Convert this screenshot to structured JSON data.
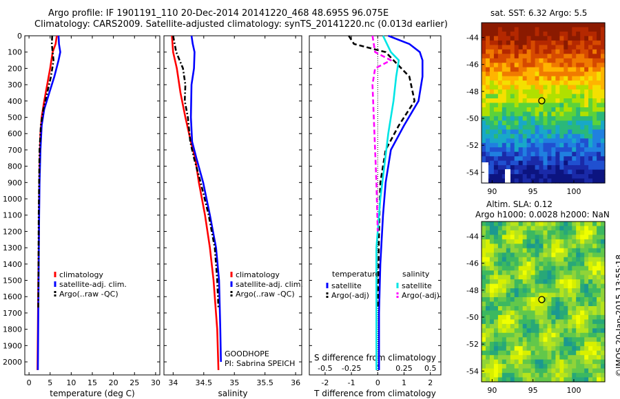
{
  "header": {
    "title_line1": "Argo profile: IF 1901191_110 20-Dec-2014 20141220_468 48.695S 96.075E",
    "title_line2": "Climatology: CARS2009. Satellite-adjusted climatology: synTS_20141220.nc (0.013d earlier)"
  },
  "maps": {
    "sst_title": "sat. SST: 6.32 Argo: 5.5",
    "sla_title_line1": "Altim. SLA: 0.12",
    "sla_title_line2": "Argo h1000: 0.0028 h2000: NaN",
    "watermark": "©IMOS 20-Jan-2015 13:55:18",
    "lat_ticks": [
      "-44",
      "-46",
      "-48",
      "-50",
      "-52",
      "-54"
    ],
    "lon_ticks": [
      "90",
      "95",
      "100"
    ],
    "float_position": {
      "lon": 96.075,
      "lat": -48.695
    }
  },
  "chart_data": [
    {
      "type": "line",
      "panel": "temperature",
      "xlabel": "temperature (deg C)",
      "xlim": [
        -1,
        31
      ],
      "xticks": [
        0,
        5,
        10,
        15,
        20,
        25,
        30
      ],
      "ylim": [
        0,
        2080
      ],
      "yticks": [
        0,
        100,
        200,
        300,
        400,
        500,
        600,
        700,
        800,
        900,
        1000,
        1100,
        1200,
        1300,
        1400,
        1500,
        1600,
        1700,
        1800,
        1900,
        2000
      ],
      "y_reversed": true,
      "legend": [
        "climatology",
        "satellite-adj. clim.",
        "Argo(..raw -QC)"
      ],
      "series": [
        {
          "name": "climatology",
          "color": "#ff0000",
          "style": "solid",
          "x": [
            6.6,
            6.3,
            5.6,
            5.0,
            4.3,
            3.6,
            3.0,
            2.7,
            2.5,
            2.4,
            2.35,
            2.2,
            2.1,
            2.0
          ],
          "y": [
            0,
            50,
            100,
            200,
            300,
            400,
            500,
            600,
            800,
            1000,
            1200,
            1500,
            1800,
            2050
          ]
        },
        {
          "name": "satellite-adj. clim.",
          "color": "#0000ff",
          "style": "solid",
          "x": [
            7.0,
            7.1,
            7.4,
            7.0,
            6.0,
            4.8,
            3.6,
            3.0,
            2.7,
            2.5,
            2.4,
            2.3,
            2.2,
            2.1
          ],
          "y": [
            0,
            50,
            100,
            150,
            250,
            350,
            450,
            550,
            700,
            900,
            1100,
            1400,
            1700,
            2050
          ]
        },
        {
          "name": "Argo(..raw -QC)",
          "color": "#000000",
          "style": "dashdot",
          "x": [
            5.5,
            5.4,
            5.6,
            5.8,
            5.2,
            4.3,
            3.4,
            2.8,
            2.5,
            2.4,
            2.3,
            2.25,
            2.2
          ],
          "y": [
            0,
            50,
            100,
            150,
            250,
            350,
            450,
            550,
            700,
            900,
            1100,
            1400,
            1670
          ]
        }
      ]
    },
    {
      "type": "line",
      "panel": "salinity",
      "xlabel": "salinity",
      "xlim": [
        33.85,
        36.1
      ],
      "xticks": [
        34,
        34.5,
        35,
        35.5,
        36
      ],
      "ylim": [
        0,
        2080
      ],
      "y_reversed": true,
      "legend": [
        "climatology",
        "satellite-adj. clim.",
        "Argo(..raw -QC)"
      ],
      "annotations": [
        "GOODHOPE",
        "PI: Sabrina SPEICH"
      ],
      "series": [
        {
          "name": "climatology",
          "color": "#ff0000",
          "style": "solid",
          "x": [
            33.98,
            34.0,
            34.06,
            34.12,
            34.2,
            34.29,
            34.36,
            34.42,
            34.52,
            34.6,
            34.66,
            34.72,
            34.74
          ],
          "y": [
            0,
            100,
            200,
            350,
            500,
            650,
            750,
            900,
            1100,
            1300,
            1500,
            1800,
            2050
          ]
        },
        {
          "name": "satellite-adj. clim.",
          "color": "#0000ff",
          "style": "solid",
          "x": [
            34.3,
            34.32,
            34.35,
            34.34,
            34.3,
            34.29,
            34.31,
            34.38,
            34.49,
            34.6,
            34.7,
            34.75,
            34.77,
            34.78
          ],
          "y": [
            0,
            50,
            100,
            200,
            300,
            500,
            650,
            750,
            900,
            1100,
            1300,
            1500,
            1800,
            2000
          ]
        },
        {
          "name": "Argo(..raw -QC)",
          "color": "#000000",
          "style": "dashdot",
          "x": [
            34.0,
            34.05,
            34.16,
            34.2,
            34.19,
            34.24,
            34.28,
            34.34,
            34.45,
            34.58,
            34.68,
            34.72,
            34.74
          ],
          "y": [
            0,
            100,
            200,
            300,
            400,
            500,
            650,
            750,
            900,
            1100,
            1300,
            1500,
            1670
          ]
        }
      ]
    },
    {
      "type": "line",
      "panel": "difference",
      "xlabel": "T difference from climatology",
      "xlabel_top": "S difference from climatology",
      "xlim": [
        -2.6,
        2.4
      ],
      "xticks": [
        -2,
        -1,
        0,
        1,
        2
      ],
      "xticks_S_labels": [
        "-0.5",
        "-0.25",
        "0",
        "0.25",
        "0.5"
      ],
      "xticks_S_positions": [
        -2,
        -1,
        0,
        1,
        2
      ],
      "ylim": [
        0,
        2080
      ],
      "y_reversed": true,
      "legend_groups": [
        "temperature",
        "salinity"
      ],
      "legend": [
        "satellite",
        "Argo(-adj)",
        "satellite",
        "Argo(-adj)"
      ],
      "series": [
        {
          "name": "temperature satellite",
          "color": "#0000ff",
          "style": "solid",
          "x": [
            0.4,
            1.2,
            1.6,
            1.7,
            1.7,
            1.55,
            1.0,
            0.5,
            0.3,
            0.2,
            0.1,
            0.05,
            0.05
          ],
          "y": [
            0,
            50,
            100,
            150,
            250,
            400,
            550,
            700,
            900,
            1100,
            1400,
            1700,
            2050
          ]
        },
        {
          "name": "temperature Argo(-adj)",
          "color": "#000000",
          "style": "dashed",
          "x": [
            -1.1,
            -0.9,
            0.3,
            0.6,
            1.2,
            1.4,
            0.8,
            0.3,
            0.1,
            0.05,
            0.02,
            0.0
          ],
          "y": [
            0,
            50,
            100,
            150,
            250,
            400,
            550,
            700,
            900,
            1200,
            1500,
            1670
          ]
        },
        {
          "name": "salinity satellite",
          "color": "#00e5e5",
          "style": "solid",
          "x": [
            0.2,
            0.5,
            0.8,
            0.7,
            0.6,
            0.4,
            0.25,
            0.1,
            -0.05,
            -0.05,
            -0.05,
            -0.05
          ],
          "y": [
            0,
            100,
            150,
            250,
            400,
            600,
            800,
            1000,
            1300,
            1600,
            1800,
            2050
          ]
        },
        {
          "name": "salinity Argo(-adj)",
          "color": "#ff00ff",
          "style": "dashed",
          "x": [
            -0.2,
            -0.1,
            0.5,
            -0.1,
            -0.2,
            -0.15,
            -0.1,
            -0.05,
            0.0
          ],
          "y": [
            0,
            100,
            150,
            200,
            300,
            500,
            700,
            900,
            1200
          ]
        }
      ]
    }
  ]
}
